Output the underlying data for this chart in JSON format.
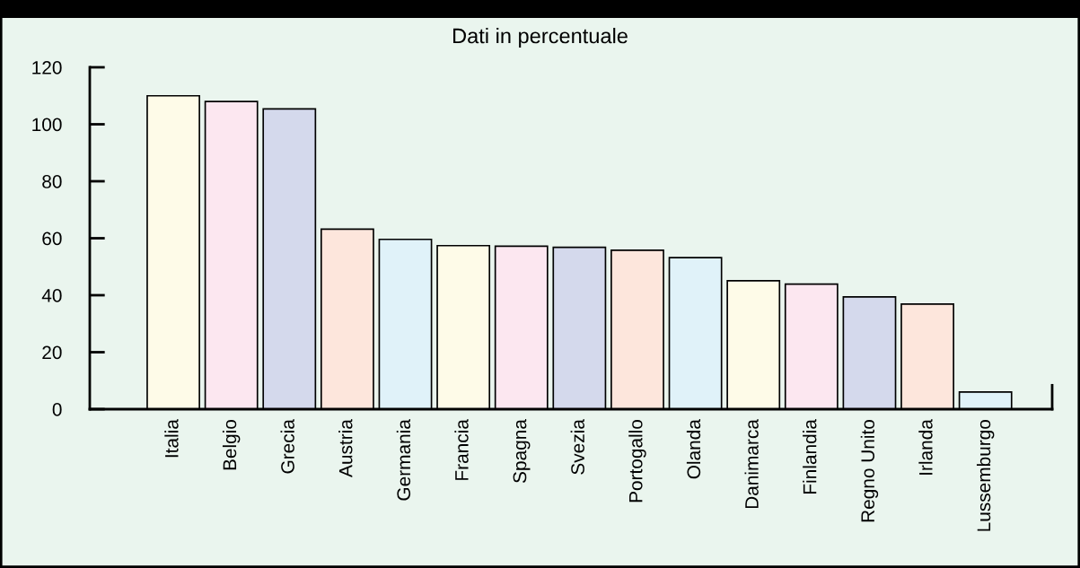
{
  "chart_data": {
    "type": "bar",
    "title": "Dati in percentuale",
    "categories": [
      "Italia",
      "Belgio",
      "Grecia",
      "Austria",
      "Germania",
      "Francia",
      "Spagna",
      "Svezia",
      "Portogallo",
      "Olanda",
      "Danimarca",
      "Finlandia",
      "Regno Unito",
      "Irlanda",
      "Lussemburgo"
    ],
    "values": [
      110,
      108,
      105.4,
      63.2,
      59.6,
      57.4,
      57.2,
      56.8,
      55.8,
      53.2,
      45.1,
      43.9,
      39.4,
      36.9,
      6.0
    ],
    "colors": [
      "#fefbe8",
      "#fce7f0",
      "#d4d9ec",
      "#fde6dc",
      "#e0f2f9",
      "#fefbe8",
      "#fce7f0",
      "#d4d9ec",
      "#fde6dc",
      "#e0f2f9",
      "#fefbe8",
      "#fce7f0",
      "#d4d9ec",
      "#fde6dc",
      "#e0f2f9"
    ],
    "ylim": [
      0,
      120
    ],
    "yticks": [
      0,
      20,
      40,
      60,
      80,
      100,
      120
    ],
    "grid": false,
    "legend": false
  }
}
